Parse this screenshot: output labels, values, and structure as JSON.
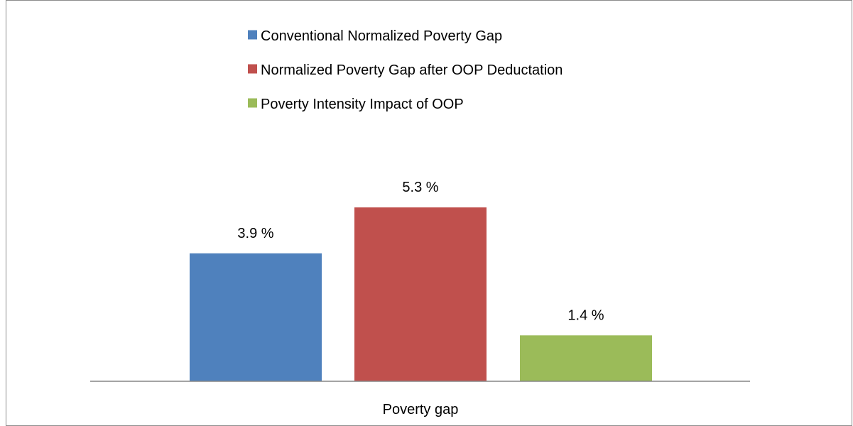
{
  "chart_data": {
    "type": "bar",
    "categories": [
      "Poverty gap"
    ],
    "series": [
      {
        "name": "Conventional Normalized Poverty Gap",
        "values": [
          3.9
        ],
        "label": "3.9 %",
        "color": "#4f81bd"
      },
      {
        "name": "Normalized Poverty Gap after OOP Deductation",
        "values": [
          5.3
        ],
        "label": "5.3 %",
        "color": "#c0504d"
      },
      {
        "name": "Poverty Intensity Impact of OOP",
        "values": [
          1.4
        ],
        "label": "1.4 %",
        "color": "#9bbb59"
      }
    ],
    "ylim": [
      0,
      7.0
    ],
    "grid": false,
    "legend_position": "top"
  }
}
